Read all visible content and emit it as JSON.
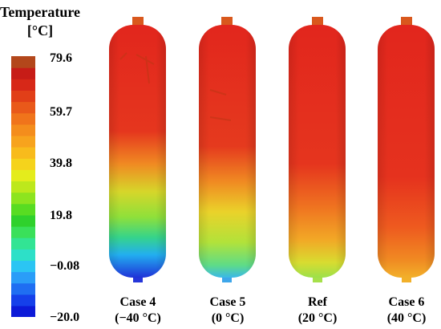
{
  "legend": {
    "title_line1": "Temperature",
    "title_line2": "[°C]",
    "ticks": [
      "79.6",
      "59.7",
      "39.8",
      "19.8",
      "−0.08",
      "−20.0"
    ],
    "colors": [
      "#0c1ad8",
      "#1540ea",
      "#1f6ef2",
      "#2a9df8",
      "#2bc5f3",
      "#2de0c8",
      "#32e494",
      "#3ae05a",
      "#2fd12c",
      "#58dc22",
      "#8de41f",
      "#bde81c",
      "#e4ec1c",
      "#f5d31c",
      "#f8bb1c",
      "#f7a31d",
      "#f48d1c",
      "#f0741b",
      "#e9591a",
      "#e13f18",
      "#d72818",
      "#c71c17",
      "#b3471b"
    ]
  },
  "tanks": [
    {
      "label_line1": "Case 4",
      "label_line2": "(−40 °C)"
    },
    {
      "label_line1": "Case 5",
      "label_line2": "(0 °C)"
    },
    {
      "label_line1": "Ref",
      "label_line2": "(20 °C)"
    },
    {
      "label_line1": "Case 6",
      "label_line2": "(40 °C)"
    }
  ]
}
